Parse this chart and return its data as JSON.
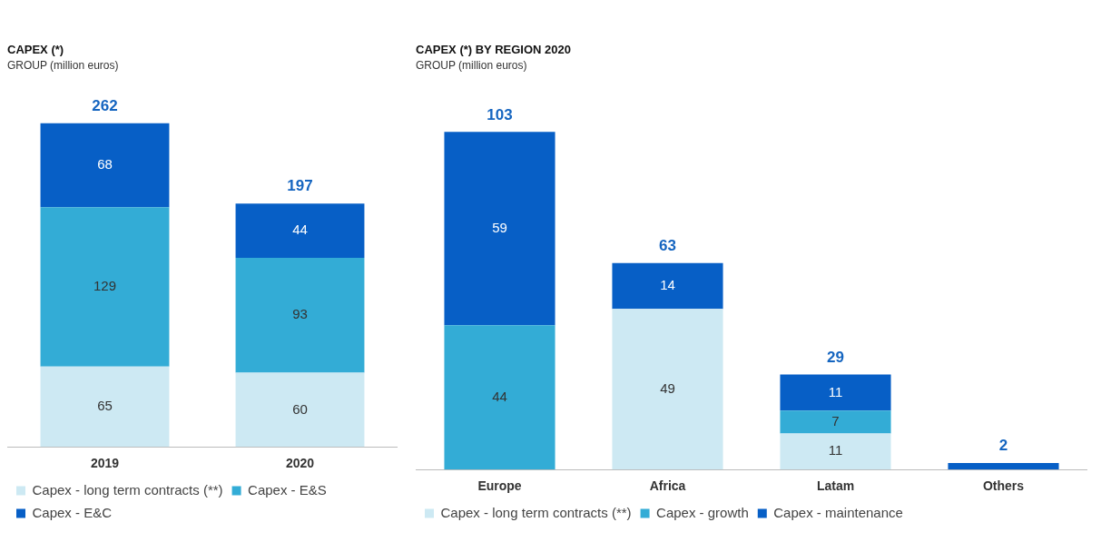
{
  "chart_data": [
    {
      "type": "bar",
      "title": "CAPEX (*)",
      "subtitle": "GROUP (million euros)",
      "categories": [
        "2019",
        "2020"
      ],
      "stacked": true,
      "data_labels": true,
      "legend": "bottom",
      "grid": false,
      "series": [
        {
          "name": "Capex - long term contracts (**)",
          "color": "#cde9f3",
          "values": [
            65,
            60
          ]
        },
        {
          "name": "Capex - E&S",
          "color": "#33acd6",
          "values": [
            129,
            93
          ]
        },
        {
          "name": "Capex - E&C",
          "color": "#075fc6",
          "values": [
            68,
            44
          ]
        }
      ],
      "totals": [
        "262",
        "197"
      ]
    },
    {
      "type": "bar",
      "title": "CAPEX (*) BY REGION 2020",
      "subtitle": "GROUP (million euros)",
      "categories": [
        "Europe",
        "Africa",
        "Latam",
        "Others"
      ],
      "stacked": true,
      "legend": "bottom",
      "grid": false,
      "series": [
        {
          "name": "Capex - long term contracts (**)",
          "color": "#cde9f3",
          "values": [
            null,
            49,
            11,
            null
          ],
          "value_labels": [
            null,
            "49",
            "11",
            null
          ]
        },
        {
          "name": "Capex - growth",
          "color": "#33acd6",
          "values": [
            44,
            null,
            7,
            null
          ],
          "value_labels": [
            "44",
            null,
            "7",
            null
          ]
        },
        {
          "name": "Capex - maintenance",
          "color": "#075fc6",
          "values": [
            59,
            14,
            11,
            2
          ],
          "value_labels": [
            "59",
            "14",
            "11",
            null
          ]
        }
      ],
      "totals": [
        "103",
        "63",
        "29",
        "2"
      ]
    }
  ]
}
